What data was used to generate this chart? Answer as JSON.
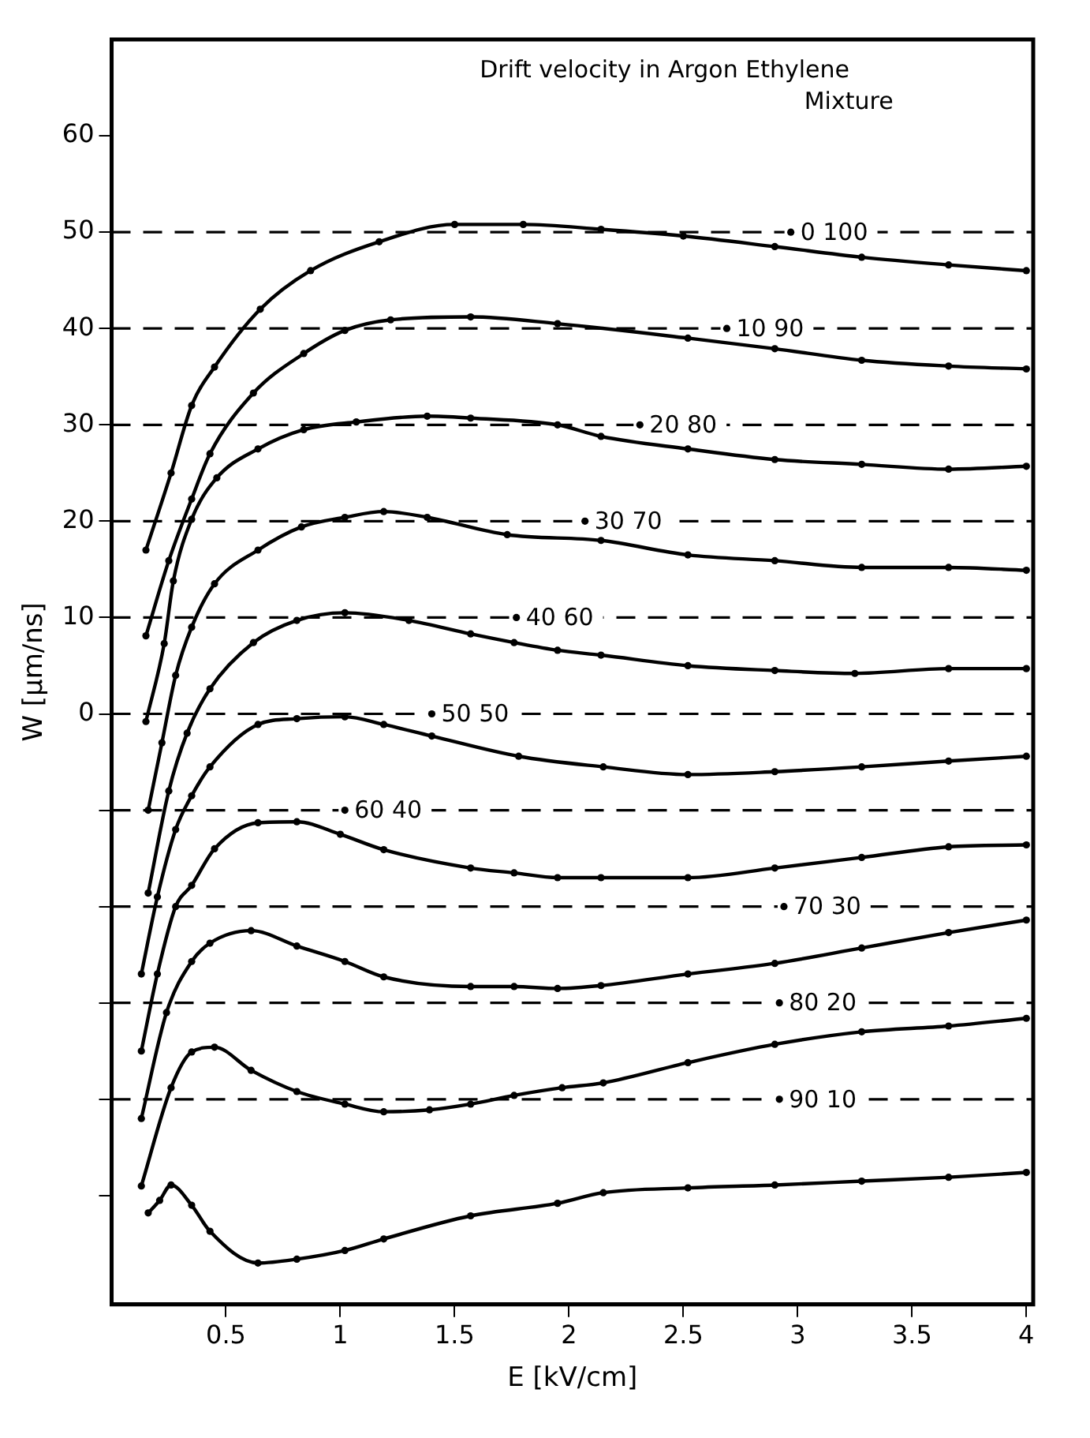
{
  "chart_data": {
    "type": "line",
    "title": "Drift velocity in Argon Ethylene Mixture",
    "xlabel": "E [kV/cm]",
    "ylabel": "W [µm/ns]",
    "xlim": [
      0,
      4.03
    ],
    "xticks": [
      0.5,
      1,
      1.5,
      2,
      2.5,
      3,
      3.5,
      4
    ],
    "ylim": [
      -61.3,
      70
    ],
    "yticks": [
      {
        "value": -50,
        "label": null
      },
      {
        "value": -40,
        "label": null
      },
      {
        "value": -30,
        "label": null
      },
      {
        "value": -20,
        "label": null
      },
      {
        "value": -10,
        "label": null
      },
      0,
      10,
      20,
      30,
      40,
      50,
      60
    ],
    "grid": false,
    "legend": false,
    "marker": "circle",
    "line_style": "solid",
    "series": [
      {
        "color": "#000000",
        "x": [
          0.15,
          0.26,
          0.35,
          0.45,
          0.65,
          0.87,
          1.17,
          1.5,
          1.8,
          2.14,
          2.5,
          2.9,
          3.28,
          3.66,
          4.0
        ],
        "values": [
          17,
          25,
          32,
          36,
          42,
          46,
          49,
          50.8,
          50.8,
          50.3,
          49.6,
          48.5,
          47.4,
          46.6,
          46
        ]
      },
      {
        "color": "#000000",
        "x": [
          0.15,
          0.25,
          0.35,
          0.43,
          0.62,
          0.84,
          1.02,
          1.22,
          1.57,
          1.95,
          2.52,
          2.9,
          3.28,
          3.66,
          4.0
        ],
        "values": [
          8.1,
          15.9,
          22.3,
          27,
          33.3,
          37.4,
          39.8,
          40.9,
          41.2,
          40.5,
          39,
          37.9,
          36.7,
          36.1,
          35.8
        ]
      },
      {
        "color": "#000000",
        "x": [
          0.15,
          0.23,
          0.27,
          0.35,
          0.46,
          0.64,
          0.84,
          1.07,
          1.38,
          1.57,
          1.95,
          2.14,
          2.52,
          2.9,
          3.28,
          3.66,
          4.0
        ],
        "values": [
          -0.8,
          7.3,
          13.8,
          20.2,
          24.5,
          27.5,
          29.5,
          30.3,
          30.9,
          30.7,
          30,
          28.8,
          27.5,
          26.4,
          25.9,
          25.4,
          25.7
        ]
      },
      {
        "color": "#000000",
        "x": [
          0.16,
          0.22,
          0.28,
          0.35,
          0.45,
          0.64,
          0.83,
          1.02,
          1.19,
          1.38,
          1.73,
          2.14,
          2.52,
          2.9,
          3.28,
          3.66,
          4.0
        ],
        "values": [
          -10,
          -3,
          4,
          9,
          13.5,
          17,
          19.4,
          20.4,
          21,
          20.4,
          18.6,
          18,
          16.5,
          15.9,
          15.2,
          15.2,
          14.9
        ]
      },
      {
        "color": "#000000",
        "x": [
          0.16,
          0.25,
          0.33,
          0.43,
          0.62,
          0.81,
          1.02,
          1.3,
          1.57,
          1.76,
          1.95,
          2.14,
          2.52,
          2.9,
          3.25,
          3.66,
          4.0
        ],
        "values": [
          -18.6,
          -8,
          -2,
          2.6,
          7.4,
          9.7,
          10.5,
          9.7,
          8.3,
          7.4,
          6.6,
          6.1,
          5,
          4.5,
          4.2,
          4.7,
          4.7
        ]
      },
      {
        "color": "#000000",
        "x": [
          0.13,
          0.2,
          0.28,
          0.35,
          0.43,
          0.64,
          0.81,
          1.02,
          1.19,
          1.4,
          1.78,
          2.15,
          2.52,
          2.9,
          3.28,
          3.66,
          4.0
        ],
        "values": [
          -27,
          -19,
          -12,
          -8.5,
          -5.5,
          -1.1,
          -0.5,
          -0.3,
          -1.1,
          -2.3,
          -4.4,
          -5.5,
          -6.3,
          -6,
          -5.5,
          -4.9,
          -4.4
        ]
      },
      {
        "color": "#000000",
        "x": [
          0.13,
          0.2,
          0.28,
          0.35,
          0.45,
          0.64,
          0.81,
          1.0,
          1.19,
          1.57,
          1.76,
          1.95,
          2.14,
          2.52,
          2.9,
          3.28,
          3.66,
          4.0
        ],
        "values": [
          -35,
          -27,
          -20,
          -17.8,
          -14,
          -11.3,
          -11.2,
          -12.5,
          -14.1,
          -16,
          -16.5,
          -17,
          -17,
          -17,
          -16,
          -14.9,
          -13.8,
          -13.6
        ]
      },
      {
        "color": "#000000",
        "x": [
          0.13,
          0.24,
          0.35,
          0.43,
          0.61,
          0.81,
          1.02,
          1.19,
          1.57,
          1.76,
          1.95,
          2.14,
          2.52,
          2.9,
          3.28,
          3.66,
          4.0
        ],
        "values": [
          -42,
          -31,
          -25.7,
          -23.8,
          -22.5,
          -24.1,
          -25.7,
          -27.3,
          -28.3,
          -28.3,
          -28.5,
          -28.2,
          -27,
          -25.9,
          -24.3,
          -22.7,
          -21.4
        ]
      },
      {
        "color": "#000000",
        "x": [
          0.13,
          0.26,
          0.35,
          0.45,
          0.61,
          0.81,
          1.02,
          1.19,
          1.39,
          1.57,
          1.76,
          1.97,
          2.15,
          2.52,
          2.9,
          3.28,
          3.66,
          4.0
        ],
        "values": [
          -49,
          -38.8,
          -35.1,
          -34.6,
          -37,
          -39.2,
          -40.5,
          -41.3,
          -41.1,
          -40.5,
          -39.6,
          -38.8,
          -38.3,
          -36.2,
          -34.3,
          -33,
          -32.4,
          -31.6
        ]
      },
      {
        "color": "#000000",
        "x": [
          0.16,
          0.21,
          0.26,
          0.35,
          0.43,
          0.64,
          0.81,
          1.02,
          1.19,
          1.57,
          1.95,
          2.15,
          2.52,
          2.9,
          3.28,
          3.66,
          4.0
        ],
        "values": [
          -51.8,
          -50.5,
          -48.9,
          -51,
          -53.7,
          -57,
          -56.6,
          -55.7,
          -54.5,
          -52.1,
          -50.8,
          -49.7,
          -49.2,
          -48.9,
          -48.5,
          -48.1,
          -47.6
        ]
      }
    ],
    "ref_lines": [
      {
        "axis": "y",
        "value": 50,
        "color": "#000000",
        "line_style": "dashed"
      },
      {
        "axis": "y",
        "value": 40,
        "color": "#000000",
        "line_style": "dashed"
      },
      {
        "axis": "y",
        "value": 30,
        "color": "#000000",
        "line_style": "dashed"
      },
      {
        "axis": "y",
        "value": 20,
        "color": "#000000",
        "line_style": "dashed"
      },
      {
        "axis": "y",
        "value": 10,
        "color": "#000000",
        "line_style": "dashed"
      },
      {
        "axis": "y",
        "value": 0,
        "color": "#000000",
        "line_style": "dashed"
      },
      {
        "axis": "y",
        "value": -10,
        "color": "#000000",
        "line_style": "dashed"
      },
      {
        "axis": "y",
        "value": -20,
        "color": "#000000",
        "line_style": "dashed"
      },
      {
        "axis": "y",
        "value": -30,
        "color": "#000000",
        "line_style": "dashed"
      },
      {
        "axis": "y",
        "value": -40,
        "color": "#000000",
        "line_style": "dashed"
      }
    ],
    "annotations": [
      {
        "text": "0 100",
        "x": 2.97,
        "y": 50
      },
      {
        "text": "10 90",
        "x": 2.69,
        "y": 40
      },
      {
        "text": "20 80",
        "x": 2.31,
        "y": 30
      },
      {
        "text": "30 70",
        "x": 2.07,
        "y": 20
      },
      {
        "text": "40 60",
        "x": 1.77,
        "y": 10
      },
      {
        "text": "50 50",
        "x": 1.4,
        "y": 0
      },
      {
        "text": "60 40",
        "x": 1.02,
        "y": -10
      },
      {
        "text": "70 30",
        "x": 2.94,
        "y": -20
      },
      {
        "text": "80 20",
        "x": 2.92,
        "y": -30
      },
      {
        "text": "90 10",
        "x": 2.92,
        "y": -40
      }
    ]
  }
}
